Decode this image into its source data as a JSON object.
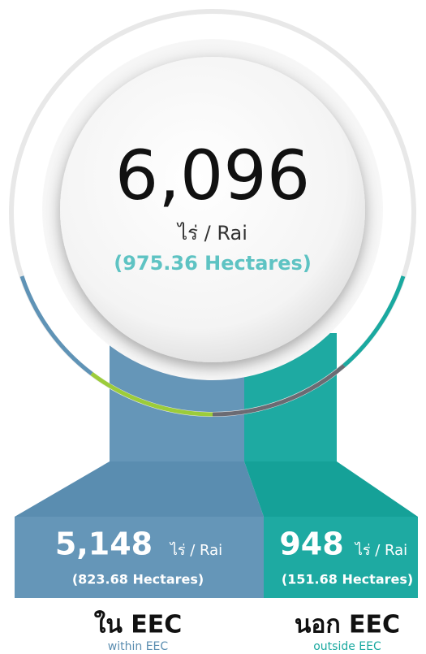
{
  "total": {
    "value": "6,096",
    "unit": "ไร่ / Rai",
    "hectares": "(975.36 Hectares)"
  },
  "inside": {
    "value": "5,148",
    "unit": "ไร่ / Rai",
    "hectares": "(823.68 Hectares)",
    "label": "ใน EEC",
    "sublabel": "within EEC"
  },
  "outside": {
    "value": "948",
    "unit": "ไร่ / Rai",
    "hectares": "(151.68 Hectares)",
    "label": "นอก EEC",
    "sublabel": "outside EEC"
  }
}
